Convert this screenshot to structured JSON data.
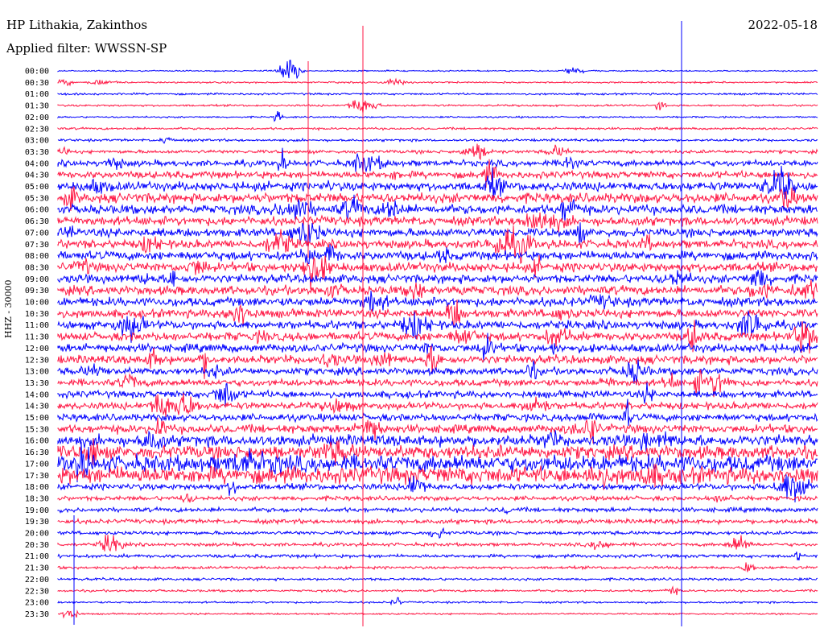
{
  "header": {
    "station": "HP Lithakia, Zakinthos",
    "date": "2022-05-18",
    "filter": "Applied filter: WWSSN-SP"
  },
  "chart_data": {
    "type": "line",
    "title": "HP Lithakia, Zakinthos",
    "ylabel": "HHZ - 30000",
    "series_colors": [
      "#0000ff",
      "#ff1744"
    ],
    "rows": [
      "00:00",
      "00:30",
      "01:00",
      "01:30",
      "02:00",
      "02:30",
      "03:00",
      "03:30",
      "04:00",
      "04:30",
      "05:00",
      "05:30",
      "06:00",
      "06:30",
      "07:00",
      "07:30",
      "08:00",
      "08:30",
      "09:00",
      "09:30",
      "10:00",
      "10:30",
      "11:00",
      "11:30",
      "12:00",
      "12:30",
      "13:00",
      "13:30",
      "14:00",
      "14:30",
      "15:00",
      "15:30",
      "16:00",
      "16:30",
      "17:00",
      "17:30",
      "18:00",
      "18:30",
      "19:00",
      "19:30",
      "20:00",
      "20:30",
      "21:00",
      "21:30",
      "22:00",
      "22:30",
      "23:00",
      "23:30"
    ],
    "noise_level": [
      0.5,
      0.6,
      0.7,
      0.7,
      0.6,
      0.8,
      0.9,
      1.2,
      2.2,
      2.5,
      3.2,
      3.5,
      3.3,
      3.2,
      3.0,
      3.0,
      3.2,
      3.3,
      3.0,
      3.2,
      3.2,
      3.0,
      3.0,
      3.0,
      3.0,
      3.0,
      2.6,
      2.5,
      2.5,
      2.5,
      2.6,
      3.0,
      4.0,
      4.8,
      6.0,
      6.0,
      2.2,
      1.6,
      1.6,
      1.6,
      1.3,
      1.2,
      1.2,
      1.0,
      0.9,
      0.8,
      0.7,
      0.6
    ]
  }
}
